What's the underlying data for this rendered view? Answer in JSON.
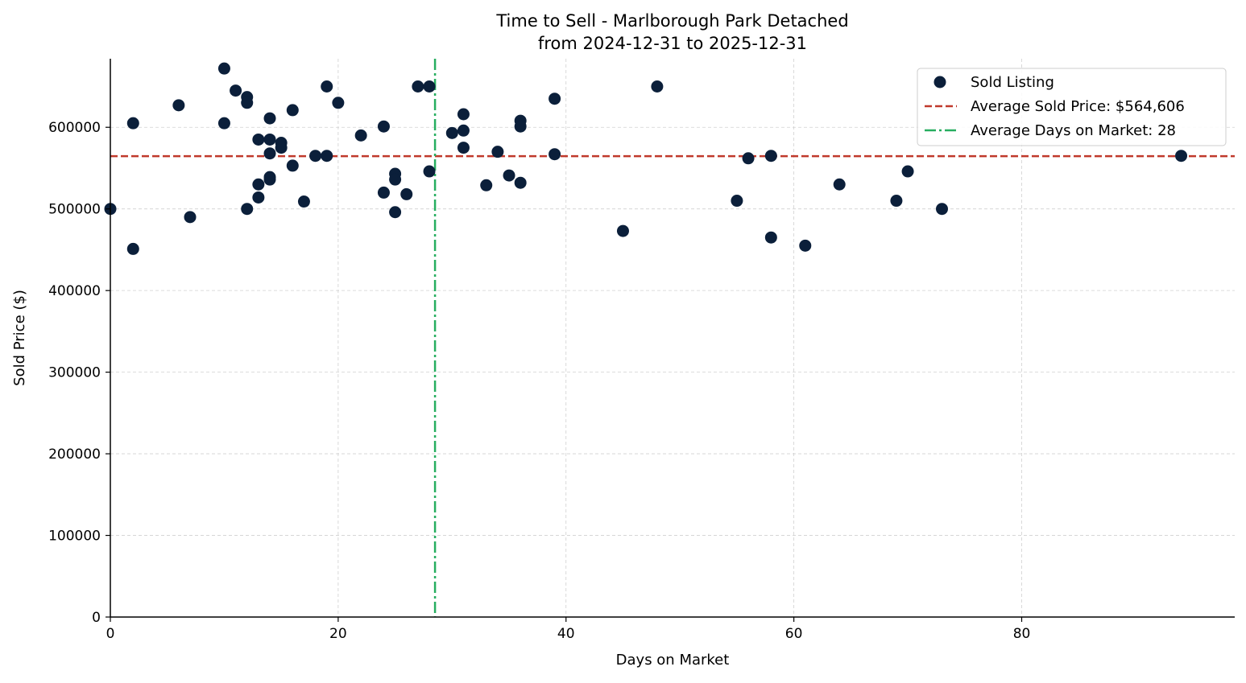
{
  "chart_data": {
    "type": "scatter",
    "title_line1": "Time to Sell - Marlborough Park Detached",
    "title_line2": "from 2024-12-31 to 2025-12-31",
    "xlabel": "Days on Market",
    "ylabel": "Sold Price ($)",
    "xlim": [
      0,
      98.7
    ],
    "ylim": [
      0,
      684000
    ],
    "xticks": [
      0,
      20,
      40,
      60,
      80
    ],
    "yticks": [
      0,
      100000,
      200000,
      300000,
      400000,
      500000,
      600000
    ],
    "grid": true,
    "legend_placement": "top-right",
    "colors": {
      "points": "#0b1f3a",
      "avg_price": "#c0392b",
      "avg_days": "#27ae60"
    },
    "legend": [
      {
        "label": "Sold Listing",
        "kind": "marker"
      },
      {
        "label": "Average Sold Price: $564,606",
        "kind": "dashed"
      },
      {
        "label": "Average Days on Market: 28",
        "kind": "dashdot"
      }
    ],
    "avg_price": 564606,
    "avg_days": 28.5,
    "points": [
      [
        0,
        500000
      ],
      [
        2,
        605000
      ],
      [
        2,
        451000
      ],
      [
        6,
        627000
      ],
      [
        7,
        490000
      ],
      [
        10,
        672000
      ],
      [
        10,
        605000
      ],
      [
        11,
        645000
      ],
      [
        12,
        637000
      ],
      [
        12,
        630000
      ],
      [
        12,
        500000
      ],
      [
        13,
        585000
      ],
      [
        13,
        530000
      ],
      [
        13,
        514000
      ],
      [
        14,
        611000
      ],
      [
        14,
        585000
      ],
      [
        14,
        568000
      ],
      [
        14,
        539000
      ],
      [
        14,
        536000
      ],
      [
        15,
        581000
      ],
      [
        15,
        575000
      ],
      [
        16,
        621000
      ],
      [
        16,
        553000
      ],
      [
        17,
        509000
      ],
      [
        18,
        565000
      ],
      [
        19,
        650000
      ],
      [
        19,
        565000
      ],
      [
        20,
        630000
      ],
      [
        22,
        590000
      ],
      [
        24,
        601000
      ],
      [
        24,
        520000
      ],
      [
        25,
        543000
      ],
      [
        25,
        536000
      ],
      [
        25,
        496000
      ],
      [
        26,
        518000
      ],
      [
        27,
        650000
      ],
      [
        28,
        650000
      ],
      [
        28,
        546000
      ],
      [
        30,
        593000
      ],
      [
        31,
        616000
      ],
      [
        31,
        596000
      ],
      [
        31,
        575000
      ],
      [
        33,
        529000
      ],
      [
        34,
        570000
      ],
      [
        35,
        541000
      ],
      [
        36,
        608000
      ],
      [
        36,
        601000
      ],
      [
        36,
        532000
      ],
      [
        39,
        635000
      ],
      [
        39,
        567000
      ],
      [
        45,
        473000
      ],
      [
        48,
        650000
      ],
      [
        55,
        510000
      ],
      [
        56,
        562000
      ],
      [
        58,
        565000
      ],
      [
        58,
        465000
      ],
      [
        61,
        455000
      ],
      [
        64,
        530000
      ],
      [
        69,
        510000
      ],
      [
        70,
        546000
      ],
      [
        73,
        500000
      ],
      [
        94,
        565000
      ]
    ]
  }
}
